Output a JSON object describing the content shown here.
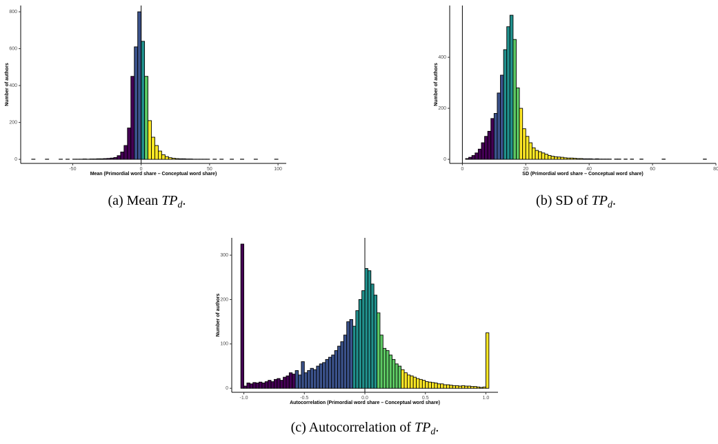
{
  "chart_data": [
    {
      "type": "histogram",
      "xlabel": "Mean (Primordial word share – Conceptual word share)",
      "ylabel": "Number of authors",
      "caption": {
        "prefix": "(a) Mean",
        "math": "TP",
        "sub": "d",
        "suffix": "."
      },
      "xlim": [
        -88,
        106
      ],
      "ylim": [
        -22,
        834
      ],
      "xticks": [
        -50,
        0,
        50,
        100
      ],
      "yticks": [
        0,
        200,
        400,
        600,
        800
      ],
      "vline": 0,
      "bins": [
        -80,
        -77.5,
        -75,
        -72.5,
        -70,
        -67.5,
        -65,
        -62.5,
        -60,
        -57.5,
        -55,
        -52.5,
        -50,
        -47.5,
        -45,
        -42.5,
        -40,
        -37.5,
        -35,
        -32.5,
        -30,
        -27.5,
        -25,
        -22.5,
        -20,
        -17.5,
        -15,
        -12.5,
        -10,
        -7.5,
        -5,
        -2.5,
        0,
        2.5,
        5,
        7.5,
        10,
        12.5,
        15,
        17.5,
        20,
        22.5,
        25,
        27.5,
        30,
        32.5,
        35,
        37.5,
        40,
        42.5,
        45,
        47.5,
        50,
        52.5,
        55,
        57.5,
        60,
        62.5,
        65,
        67.5,
        70,
        72.5,
        75,
        77.5,
        80,
        82.5,
        85,
        87.5,
        90,
        92.5,
        95,
        97.5,
        100
      ],
      "counts": [
        1,
        0,
        0,
        0,
        1,
        0,
        0,
        0,
        1,
        0,
        1,
        0,
        1,
        1,
        1,
        2,
        1,
        2,
        2,
        3,
        3,
        4,
        5,
        7,
        10,
        20,
        40,
        75,
        170,
        450,
        610,
        800,
        640,
        450,
        210,
        120,
        75,
        45,
        25,
        15,
        9,
        6,
        4,
        3,
        3,
        2,
        2,
        1,
        1,
        1,
        1,
        1,
        0,
        1,
        0,
        1,
        0,
        0,
        1,
        0,
        0,
        1,
        0,
        0,
        0,
        1,
        0,
        0,
        0,
        0,
        0,
        1
      ],
      "colors": [
        "#440154",
        "#440154",
        "#440154",
        "#440154",
        "#440154",
        "#440154",
        "#440154",
        "#440154",
        "#440154",
        "#440154",
        "#440154",
        "#440154",
        "#440154",
        "#440154",
        "#440154",
        "#440154",
        "#440154",
        "#440154",
        "#440154",
        "#440154",
        "#440154",
        "#440154",
        "#440154",
        "#440154",
        "#440154",
        "#440154",
        "#440154",
        "#440154",
        "#440154",
        "#440154",
        "#3b528b",
        "#3b528b",
        "#21908c",
        "#5dc863",
        "#fde725",
        "#fde725",
        "#fde725",
        "#fde725",
        "#fde725",
        "#fde725",
        "#fde725",
        "#fde725",
        "#fde725",
        "#fde725",
        "#fde725",
        "#fde725",
        "#fde725",
        "#fde725",
        "#fde725",
        "#fde725",
        "#fde725",
        "#fde725",
        "#fde725",
        "#fde725",
        "#fde725",
        "#fde725",
        "#fde725",
        "#fde725",
        "#fde725",
        "#fde725",
        "#fde725",
        "#fde725",
        "#fde725",
        "#fde725",
        "#fde725",
        "#fde725",
        "#fde725",
        "#fde725",
        "#fde725",
        "#fde725",
        "#fde725",
        "#fde725"
      ]
    },
    {
      "type": "histogram",
      "xlabel": "SD (Primordial word share – Conceptual word share)",
      "ylabel": "Number of authors",
      "caption": {
        "prefix": "(b) SD of",
        "math": "TP",
        "sub": "d",
        "suffix": "."
      },
      "xlim": [
        -4,
        80
      ],
      "ylim": [
        -16,
        603
      ],
      "xticks": [
        0,
        20,
        40,
        60,
        80
      ],
      "yticks": [
        0,
        200,
        400
      ],
      "vline": 0,
      "bins": [
        0,
        1,
        2,
        3,
        4,
        5,
        6,
        7,
        8,
        9,
        10,
        11,
        12,
        13,
        14,
        15,
        16,
        17,
        18,
        19,
        20,
        21,
        22,
        23,
        24,
        25,
        26,
        27,
        28,
        29,
        30,
        31,
        32,
        33,
        34,
        35,
        36,
        37,
        38,
        39,
        40,
        41,
        42,
        43,
        44,
        45,
        46,
        47,
        48,
        49,
        50,
        51,
        52,
        53,
        54,
        55,
        56,
        57,
        58,
        59,
        60,
        61,
        62,
        63,
        64,
        65,
        66,
        67,
        68,
        69,
        70,
        71,
        72,
        73,
        74,
        75,
        76,
        77
      ],
      "counts": [
        0,
        3,
        8,
        15,
        25,
        40,
        65,
        90,
        110,
        160,
        180,
        260,
        330,
        430,
        520,
        565,
        470,
        280,
        200,
        120,
        90,
        65,
        45,
        35,
        30,
        25,
        20,
        15,
        12,
        10,
        9,
        8,
        6,
        5,
        5,
        4,
        3,
        3,
        2,
        2,
        2,
        1,
        2,
        1,
        1,
        1,
        1,
        0,
        1,
        1,
        0,
        1,
        0,
        1,
        0,
        0,
        1,
        0,
        0,
        0,
        0,
        0,
        0,
        1,
        0,
        0,
        0,
        0,
        0,
        0,
        0,
        0,
        0,
        0,
        0,
        0,
        1
      ],
      "colors": [
        "#440154",
        "#440154",
        "#440154",
        "#440154",
        "#440154",
        "#440154",
        "#440154",
        "#440154",
        "#440154",
        "#440154",
        "#3b528b",
        "#3b528b",
        "#3b528b",
        "#21908c",
        "#21908c",
        "#21908c",
        "#5dc863",
        "#5dc863",
        "#fde725",
        "#fde725",
        "#fde725",
        "#fde725",
        "#fde725",
        "#fde725",
        "#fde725",
        "#fde725",
        "#fde725",
        "#fde725",
        "#fde725",
        "#fde725",
        "#fde725",
        "#fde725",
        "#fde725",
        "#fde725",
        "#fde725",
        "#fde725",
        "#fde725",
        "#fde725",
        "#fde725",
        "#fde725",
        "#fde725",
        "#fde725",
        "#fde725",
        "#fde725",
        "#fde725",
        "#fde725",
        "#fde725",
        "#fde725",
        "#fde725",
        "#fde725",
        "#fde725",
        "#fde725",
        "#fde725",
        "#fde725",
        "#fde725",
        "#fde725",
        "#fde725",
        "#fde725",
        "#fde725",
        "#fde725",
        "#fde725",
        "#fde725",
        "#fde725",
        "#fde725",
        "#fde725",
        "#fde725",
        "#fde725",
        "#fde725",
        "#fde725",
        "#fde725",
        "#fde725",
        "#fde725",
        "#fde725",
        "#fde725",
        "#fde725",
        "#fde725",
        "#fde725"
      ]
    },
    {
      "type": "histogram",
      "xlabel": "Autocorrelation (Primordial word share – Conceptual word share)",
      "ylabel": "Number of authors",
      "caption": {
        "prefix": "(c) Autocorrelation of",
        "math": "TP",
        "sub": "d",
        "suffix": "."
      },
      "xlim": [
        -1.1,
        1.1
      ],
      "ylim": [
        -9,
        339
      ],
      "xticks": [
        {
          "value": -1,
          "label": "-1.0"
        },
        -0.5,
        {
          "value": 0,
          "label": "0.0"
        },
        0.5,
        {
          "value": 1,
          "label": "1.0"
        }
      ],
      "yticks": [
        0,
        100,
        200,
        300
      ],
      "vline": 0,
      "bins": [
        -1.025,
        -1,
        -0.975,
        -0.95,
        -0.925,
        -0.9,
        -0.875,
        -0.85,
        -0.825,
        -0.8,
        -0.775,
        -0.75,
        -0.725,
        -0.7,
        -0.675,
        -0.65,
        -0.625,
        -0.6,
        -0.575,
        -0.55,
        -0.525,
        -0.5,
        -0.475,
        -0.45,
        -0.425,
        -0.4,
        -0.375,
        -0.35,
        -0.325,
        -0.3,
        -0.275,
        -0.25,
        -0.225,
        -0.2,
        -0.175,
        -0.15,
        -0.125,
        -0.1,
        -0.075,
        -0.05,
        -0.025,
        0,
        0.025,
        0.05,
        0.075,
        0.1,
        0.125,
        0.15,
        0.175,
        0.2,
        0.225,
        0.25,
        0.275,
        0.3,
        0.325,
        0.35,
        0.375,
        0.4,
        0.425,
        0.45,
        0.475,
        0.5,
        0.525,
        0.55,
        0.575,
        0.6,
        0.625,
        0.65,
        0.675,
        0.7,
        0.725,
        0.75,
        0.775,
        0.8,
        0.825,
        0.85,
        0.875,
        0.9,
        0.925,
        0.95,
        0.975,
        1,
        1.025
      ],
      "counts": [
        325,
        5,
        12,
        10,
        13,
        12,
        14,
        12,
        15,
        18,
        15,
        20,
        22,
        18,
        25,
        28,
        35,
        32,
        40,
        30,
        60,
        35,
        40,
        45,
        42,
        50,
        55,
        58,
        65,
        70,
        75,
        85,
        95,
        105,
        120,
        150,
        155,
        140,
        175,
        200,
        220,
        270,
        265,
        235,
        210,
        170,
        120,
        90,
        85,
        75,
        65,
        55,
        50,
        42,
        35,
        30,
        28,
        25,
        22,
        20,
        18,
        15,
        14,
        13,
        12,
        10,
        10,
        8,
        8,
        7,
        6,
        6,
        5,
        6,
        5,
        5,
        4,
        4,
        3,
        2,
        3,
        125
      ],
      "colors": [
        "#440154",
        "#440154",
        "#440154",
        "#440154",
        "#440154",
        "#440154",
        "#440154",
        "#440154",
        "#440154",
        "#440154",
        "#440154",
        "#440154",
        "#440154",
        "#440154",
        "#440154",
        "#440154",
        "#440154",
        "#440154",
        "#3b528b",
        "#3b528b",
        "#3b528b",
        "#3b528b",
        "#3b528b",
        "#3b528b",
        "#3b528b",
        "#3b528b",
        "#3b528b",
        "#3b528b",
        "#3b528b",
        "#3b528b",
        "#3b528b",
        "#3b528b",
        "#3b528b",
        "#3b528b",
        "#3b528b",
        "#3b528b",
        "#3b528b",
        "#21908c",
        "#21908c",
        "#21908c",
        "#21908c",
        "#21908c",
        "#21908c",
        "#21908c",
        "#21908c",
        "#5dc863",
        "#5dc863",
        "#5dc863",
        "#5dc863",
        "#5dc863",
        "#5dc863",
        "#5dc863",
        "#5dc863",
        "#fde725",
        "#fde725",
        "#fde725",
        "#fde725",
        "#fde725",
        "#fde725",
        "#fde725",
        "#fde725",
        "#fde725",
        "#fde725",
        "#fde725",
        "#fde725",
        "#fde725",
        "#fde725",
        "#fde725",
        "#fde725",
        "#fde725",
        "#fde725",
        "#fde725",
        "#fde725",
        "#fde725",
        "#fde725",
        "#fde725",
        "#fde725",
        "#fde725",
        "#fde725",
        "#fde725",
        "#fde725",
        "#fde725"
      ]
    }
  ]
}
